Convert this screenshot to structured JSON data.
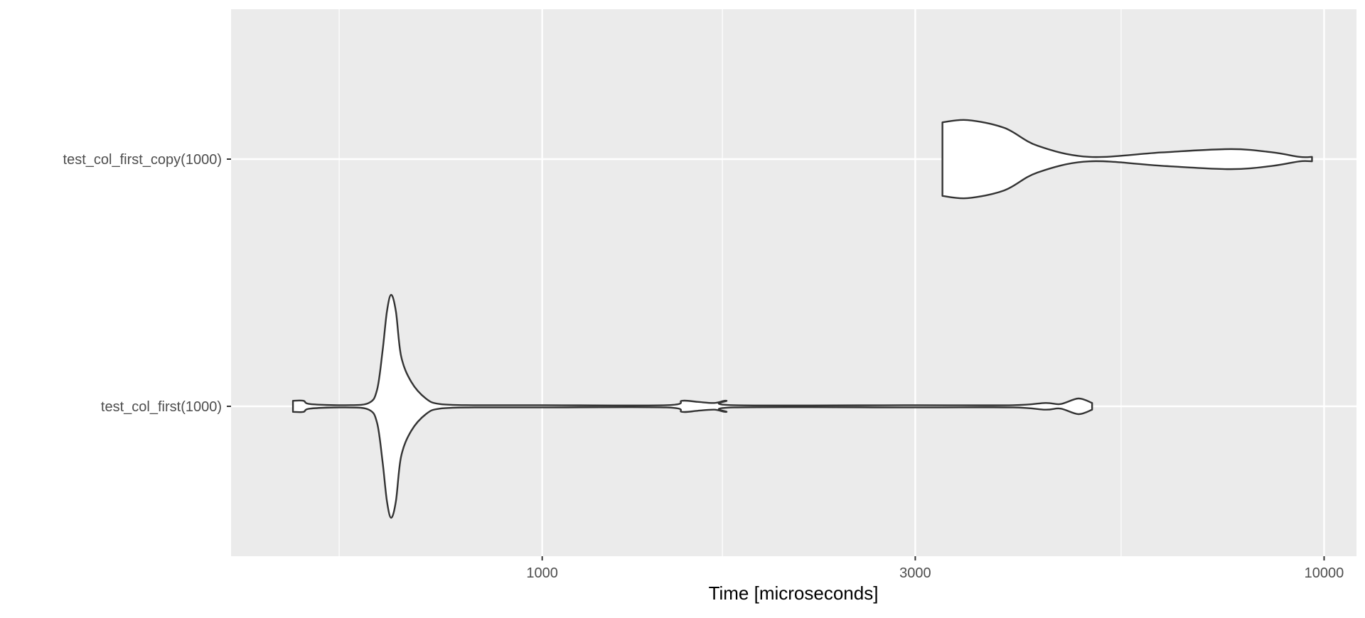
{
  "chart_data": {
    "type": "violin",
    "orientation": "horizontal",
    "title": "",
    "xlabel": "Time [microseconds]",
    "ylabel": "",
    "x_scale": "log10",
    "xlim": [
      400,
      11000
    ],
    "x_major_ticks": [
      1000,
      3000,
      10000
    ],
    "x_tick_labels": [
      "1000",
      "3000",
      "10000"
    ],
    "x_minor_gridlines": [
      550,
      1700,
      5500
    ],
    "grid": true,
    "legend": "none",
    "categories": [
      "test_col_first(1000)",
      "test_col_first_copy(1000)"
    ],
    "colors": {
      "panel": "#ebebeb",
      "grid": "#ffffff",
      "violin_fill": "#ffffff",
      "violin_stroke": "#333333",
      "label_text": "#4d4d4d",
      "tick_mark": "#333333"
    },
    "series": [
      {
        "name": "test_col_first(1000)",
        "min": 480,
        "max": 5050,
        "density_profile": [
          {
            "x": 480,
            "w": 0.05
          },
          {
            "x": 495,
            "w": 0.05
          },
          {
            "x": 505,
            "w": 0.02
          },
          {
            "x": 560,
            "w": 0.01
          },
          {
            "x": 600,
            "w": 0.03
          },
          {
            "x": 615,
            "w": 0.15
          },
          {
            "x": 625,
            "w": 0.5
          },
          {
            "x": 633,
            "w": 0.85
          },
          {
            "x": 641,
            "w": 1.0
          },
          {
            "x": 650,
            "w": 0.85
          },
          {
            "x": 660,
            "w": 0.45
          },
          {
            "x": 680,
            "w": 0.22
          },
          {
            "x": 710,
            "w": 0.07
          },
          {
            "x": 740,
            "w": 0.02
          },
          {
            "x": 820,
            "w": 0.01
          },
          {
            "x": 1000,
            "w": 0.01
          },
          {
            "x": 1440,
            "w": 0.01
          },
          {
            "x": 1510,
            "w": 0.05
          },
          {
            "x": 1580,
            "w": 0.04
          },
          {
            "x": 1660,
            "w": 0.03
          },
          {
            "x": 1720,
            "w": 0.05
          },
          {
            "x": 1760,
            "w": 0.01
          },
          {
            "x": 3000,
            "w": 0.01
          },
          {
            "x": 4000,
            "w": 0.01
          },
          {
            "x": 4400,
            "w": 0.03
          },
          {
            "x": 4600,
            "w": 0.02
          },
          {
            "x": 4850,
            "w": 0.07
          },
          {
            "x": 5050,
            "w": 0.03
          }
        ]
      },
      {
        "name": "test_col_first_copy(1000)",
        "min": 3250,
        "max": 9650,
        "density_profile": [
          {
            "x": 3250,
            "w": 0.33
          },
          {
            "x": 3500,
            "w": 0.35
          },
          {
            "x": 3900,
            "w": 0.28
          },
          {
            "x": 4300,
            "w": 0.12
          },
          {
            "x": 5000,
            "w": 0.02
          },
          {
            "x": 6200,
            "w": 0.06
          },
          {
            "x": 7600,
            "w": 0.09
          },
          {
            "x": 8600,
            "w": 0.06
          },
          {
            "x": 9300,
            "w": 0.02
          },
          {
            "x": 9650,
            "w": 0.02
          }
        ]
      }
    ]
  }
}
